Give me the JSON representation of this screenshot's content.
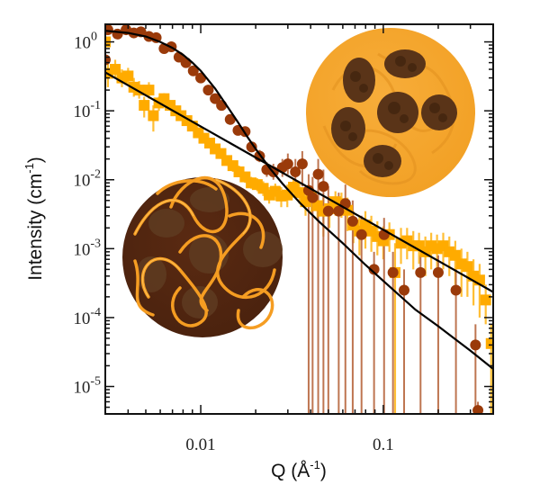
{
  "chart_data": {
    "type": "scatter",
    "title": "",
    "xlabel": "Q (Å^-1)",
    "xlabel_main": "Q (Å",
    "xlabel_sup": "-1",
    "xlabel_close": ")",
    "ylabel": "Intensity (cm^-1)",
    "ylabel_main": "Intensity (cm",
    "ylabel_sup": "-1",
    "ylabel_close": ")",
    "xscale": "log",
    "yscale": "log",
    "xlim": [
      0.003,
      0.4
    ],
    "ylim": [
      4e-06,
      1.8
    ],
    "grid": false,
    "legend": "none",
    "x_ticks": [
      {
        "value": 0.01,
        "label": "0.01"
      },
      {
        "value": 0.1,
        "label": "0.1"
      }
    ],
    "y_ticks": [
      {
        "value": 1,
        "base": "10",
        "exp": "0"
      },
      {
        "value": 0.1,
        "base": "10",
        "exp": "-1"
      },
      {
        "value": 0.01,
        "base": "10",
        "exp": "-2"
      },
      {
        "value": 0.001,
        "base": "10",
        "exp": "-3"
      },
      {
        "value": 0.0001,
        "base": "10",
        "exp": "-4"
      },
      {
        "value": 1e-05,
        "base": "10",
        "exp": "-5"
      }
    ],
    "series": [
      {
        "name": "dark-brown-circles",
        "marker": "circle",
        "color": "#9a3a0a",
        "errorbar_color": "#b8673f",
        "points": [
          {
            "x": 0.003,
            "y": 0.55,
            "lo": 0.35,
            "hi": 0.8
          },
          {
            "x": 0.0031,
            "y": 1.5,
            "lo": 1.35,
            "hi": 1.65
          },
          {
            "x": 0.0035,
            "y": 1.3,
            "lo": 1.2,
            "hi": 1.4
          },
          {
            "x": 0.0039,
            "y": 1.5,
            "lo": 1.4,
            "hi": 1.6
          },
          {
            "x": 0.0043,
            "y": 1.35,
            "lo": 1.25,
            "hi": 1.45
          },
          {
            "x": 0.0047,
            "y": 1.4,
            "lo": 1.3,
            "hi": 1.5
          },
          {
            "x": 0.0052,
            "y": 1.2,
            "lo": 1.1,
            "hi": 1.3
          },
          {
            "x": 0.0057,
            "y": 1.15,
            "lo": 1.05,
            "hi": 1.25
          },
          {
            "x": 0.0063,
            "y": 0.8,
            "lo": 0.72,
            "hi": 0.88
          },
          {
            "x": 0.0069,
            "y": 0.85,
            "lo": 0.77,
            "hi": 0.93
          },
          {
            "x": 0.0076,
            "y": 0.6,
            "lo": 0.54,
            "hi": 0.66
          },
          {
            "x": 0.0083,
            "y": 0.5,
            "lo": 0.45,
            "hi": 0.55
          },
          {
            "x": 0.0091,
            "y": 0.38,
            "lo": 0.34,
            "hi": 0.42
          },
          {
            "x": 0.01,
            "y": 0.3,
            "lo": 0.27,
            "hi": 0.33
          },
          {
            "x": 0.011,
            "y": 0.2,
            "lo": 0.18,
            "hi": 0.22
          },
          {
            "x": 0.012,
            "y": 0.15,
            "lo": 0.13,
            "hi": 0.17
          },
          {
            "x": 0.013,
            "y": 0.12,
            "lo": 0.105,
            "hi": 0.135
          },
          {
            "x": 0.0145,
            "y": 0.075,
            "lo": 0.065,
            "hi": 0.085
          },
          {
            "x": 0.016,
            "y": 0.052,
            "lo": 0.045,
            "hi": 0.06
          },
          {
            "x": 0.0175,
            "y": 0.05,
            "lo": 0.043,
            "hi": 0.058
          },
          {
            "x": 0.019,
            "y": 0.03,
            "lo": 0.025,
            "hi": 0.035
          },
          {
            "x": 0.021,
            "y": 0.022,
            "lo": 0.018,
            "hi": 0.027
          },
          {
            "x": 0.023,
            "y": 0.014,
            "lo": 0.011,
            "hi": 0.018
          },
          {
            "x": 0.025,
            "y": 0.013,
            "lo": 0.01,
            "hi": 0.017
          },
          {
            "x": 0.028,
            "y": 0.015,
            "lo": 0.011,
            "hi": 0.02
          },
          {
            "x": 0.03,
            "y": 0.017,
            "lo": 0.012,
            "hi": 0.024
          },
          {
            "x": 0.033,
            "y": 0.013,
            "lo": 0.007,
            "hi": 0.02
          },
          {
            "x": 0.036,
            "y": 0.017,
            "lo": 0.008,
            "hi": 0.026
          },
          {
            "x": 0.039,
            "y": 0.007,
            "lo": 4e-06,
            "hi": 0.012
          },
          {
            "x": 0.041,
            "y": 0.0055,
            "lo": 4e-06,
            "hi": 0.011
          },
          {
            "x": 0.044,
            "y": 0.012,
            "lo": 4e-06,
            "hi": 0.02
          },
          {
            "x": 0.047,
            "y": 0.008,
            "lo": 4e-06,
            "hi": 0.014
          },
          {
            "x": 0.05,
            "y": 0.0035,
            "lo": 4e-06,
            "hi": 0.008
          },
          {
            "x": 0.057,
            "y": 0.0035,
            "lo": 4e-06,
            "hi": 0.0065
          },
          {
            "x": 0.062,
            "y": 0.0045,
            "lo": 4e-06,
            "hi": 0.0085
          },
          {
            "x": 0.068,
            "y": 0.0025,
            "lo": 4e-06,
            "hi": 0.005
          },
          {
            "x": 0.076,
            "y": 0.0016,
            "lo": 4e-06,
            "hi": 0.003
          },
          {
            "x": 0.089,
            "y": 0.0005,
            "lo": 4e-06,
            "hi": 0.0009
          },
          {
            "x": 0.101,
            "y": 0.0016,
            "lo": 4e-06,
            "hi": 0.0028
          },
          {
            "x": 0.113,
            "y": 0.00045,
            "lo": 4e-06,
            "hi": 0.0009
          },
          {
            "x": 0.13,
            "y": 0.00025,
            "lo": 4e-06,
            "hi": 0.0005
          },
          {
            "x": 0.16,
            "y": 0.00045,
            "lo": 4e-06,
            "hi": 0.0008
          },
          {
            "x": 0.2,
            "y": 0.00045,
            "lo": 4e-06,
            "hi": 0.0008
          },
          {
            "x": 0.25,
            "y": 0.00025,
            "lo": 4e-06,
            "hi": 0.0005
          },
          {
            "x": 0.32,
            "y": 4e-05,
            "lo": 4e-06,
            "hi": 8e-05
          },
          {
            "x": 0.33,
            "y": 4.5e-06,
            "lo": 4e-06,
            "hi": 6e-06
          }
        ]
      },
      {
        "name": "orange-squares",
        "marker": "square",
        "color": "#ffab00",
        "errorbar_color": "#ffb820",
        "points": [
          {
            "x": 0.003,
            "y": 1.0,
            "lo": 0.85,
            "hi": 1.15
          },
          {
            "x": 0.0031,
            "y": 0.35,
            "lo": 0.22,
            "hi": 0.5
          },
          {
            "x": 0.0034,
            "y": 0.4,
            "lo": 0.3,
            "hi": 0.55
          },
          {
            "x": 0.0037,
            "y": 0.3,
            "lo": 0.22,
            "hi": 0.4
          },
          {
            "x": 0.004,
            "y": 0.32,
            "lo": 0.24,
            "hi": 0.42
          },
          {
            "x": 0.0043,
            "y": 0.22,
            "lo": 0.16,
            "hi": 0.3
          },
          {
            "x": 0.0046,
            "y": 0.2,
            "lo": 0.15,
            "hi": 0.27
          },
          {
            "x": 0.0049,
            "y": 0.12,
            "lo": 0.08,
            "hi": 0.16
          },
          {
            "x": 0.0052,
            "y": 0.2,
            "lo": 0.15,
            "hi": 0.26
          },
          {
            "x": 0.0055,
            "y": 0.085,
            "lo": 0.05,
            "hi": 0.12
          },
          {
            "x": 0.0059,
            "y": 0.13,
            "lo": 0.1,
            "hi": 0.16
          },
          {
            "x": 0.0063,
            "y": 0.15,
            "lo": 0.12,
            "hi": 0.18
          },
          {
            "x": 0.0068,
            "y": 0.12,
            "lo": 0.1,
            "hi": 0.14
          },
          {
            "x": 0.0073,
            "y": 0.1,
            "lo": 0.085,
            "hi": 0.115
          },
          {
            "x": 0.0078,
            "y": 0.085,
            "lo": 0.073,
            "hi": 0.097
          },
          {
            "x": 0.0084,
            "y": 0.072,
            "lo": 0.062,
            "hi": 0.082
          },
          {
            "x": 0.009,
            "y": 0.06,
            "lo": 0.052,
            "hi": 0.068
          },
          {
            "x": 0.0097,
            "y": 0.048,
            "lo": 0.041,
            "hi": 0.055
          },
          {
            "x": 0.0104,
            "y": 0.04,
            "lo": 0.034,
            "hi": 0.046
          },
          {
            "x": 0.0112,
            "y": 0.034,
            "lo": 0.029,
            "hi": 0.039
          },
          {
            "x": 0.012,
            "y": 0.028,
            "lo": 0.024,
            "hi": 0.032
          },
          {
            "x": 0.0129,
            "y": 0.024,
            "lo": 0.02,
            "hi": 0.028
          },
          {
            "x": 0.0139,
            "y": 0.019,
            "lo": 0.016,
            "hi": 0.022
          },
          {
            "x": 0.015,
            "y": 0.016,
            "lo": 0.013,
            "hi": 0.019
          },
          {
            "x": 0.0162,
            "y": 0.013,
            "lo": 0.011,
            "hi": 0.016
          },
          {
            "x": 0.0175,
            "y": 0.011,
            "lo": 0.009,
            "hi": 0.013
          },
          {
            "x": 0.0189,
            "y": 0.009,
            "lo": 0.0074,
            "hi": 0.011
          },
          {
            "x": 0.0204,
            "y": 0.0085,
            "lo": 0.0068,
            "hi": 0.0105
          },
          {
            "x": 0.022,
            "y": 0.0075,
            "lo": 0.0058,
            "hi": 0.0095
          },
          {
            "x": 0.0237,
            "y": 0.006,
            "lo": 0.0045,
            "hi": 0.0078
          },
          {
            "x": 0.0256,
            "y": 0.0068,
            "lo": 0.005,
            "hi": 0.0088
          },
          {
            "x": 0.0276,
            "y": 0.0058,
            "lo": 0.004,
            "hi": 0.0078
          },
          {
            "x": 0.0298,
            "y": 0.006,
            "lo": 0.004,
            "hi": 0.0085
          },
          {
            "x": 0.0322,
            "y": 0.0078,
            "lo": 0.0055,
            "hi": 0.01
          },
          {
            "x": 0.0347,
            "y": 0.0065,
            "lo": 0.0045,
            "hi": 0.009
          },
          {
            "x": 0.0375,
            "y": 0.0048,
            "lo": 0.003,
            "hi": 0.007
          },
          {
            "x": 0.0404,
            "y": 0.0056,
            "lo": 0.0033,
            "hi": 0.008
          },
          {
            "x": 0.0436,
            "y": 0.0042,
            "lo": 0.0025,
            "hi": 0.006
          },
          {
            "x": 0.047,
            "y": 0.0035,
            "lo": 0.0015,
            "hi": 0.0055
          },
          {
            "x": 0.0507,
            "y": 0.0038,
            "lo": 0.002,
            "hi": 0.0058
          },
          {
            "x": 0.0547,
            "y": 0.0048,
            "lo": 0.003,
            "hi": 0.0068
          },
          {
            "x": 0.059,
            "y": 0.0045,
            "lo": 0.0028,
            "hi": 0.0065
          },
          {
            "x": 0.0636,
            "y": 0.0036,
            "lo": 0.0018,
            "hi": 0.0055
          },
          {
            "x": 0.0686,
            "y": 0.0022,
            "lo": 0.0012,
            "hi": 0.0035
          },
          {
            "x": 0.074,
            "y": 0.0018,
            "lo": 0.0008,
            "hi": 0.003
          },
          {
            "x": 0.0798,
            "y": 0.0022,
            "lo": 0.001,
            "hi": 0.0035
          },
          {
            "x": 0.086,
            "y": 0.0018,
            "lo": 0.0009,
            "hi": 0.003
          },
          {
            "x": 0.0928,
            "y": 0.0015,
            "lo": 0.0008,
            "hi": 0.0025
          },
          {
            "x": 0.1,
            "y": 0.0013,
            "lo": 0.0007,
            "hi": 0.0021
          },
          {
            "x": 0.108,
            "y": 0.0016,
            "lo": 0.0009,
            "hi": 0.0024
          },
          {
            "x": 0.116,
            "y": 0.00045,
            "lo": 4e-06,
            "hi": 0.0012
          },
          {
            "x": 0.125,
            "y": 0.0012,
            "lo": 0.0006,
            "hi": 0.002
          },
          {
            "x": 0.135,
            "y": 0.0013,
            "lo": 0.0007,
            "hi": 0.002
          },
          {
            "x": 0.146,
            "y": 0.0011,
            "lo": 0.0005,
            "hi": 0.0018
          },
          {
            "x": 0.157,
            "y": 0.0011,
            "lo": 0.0006,
            "hi": 0.0017
          },
          {
            "x": 0.17,
            "y": 0.0009,
            "lo": 0.0004,
            "hi": 0.0015
          },
          {
            "x": 0.183,
            "y": 0.0011,
            "lo": 0.0005,
            "hi": 0.0017
          },
          {
            "x": 0.197,
            "y": 0.001,
            "lo": 0.0005,
            "hi": 0.0016
          },
          {
            "x": 0.213,
            "y": 0.0011,
            "lo": 0.0005,
            "hi": 0.0017
          },
          {
            "x": 0.23,
            "y": 0.0009,
            "lo": 0.0004,
            "hi": 0.0015
          },
          {
            "x": 0.248,
            "y": 0.0008,
            "lo": 0.0003,
            "hi": 0.0013
          },
          {
            "x": 0.268,
            "y": 0.0006,
            "lo": 0.0002,
            "hi": 0.001
          },
          {
            "x": 0.289,
            "y": 0.00055,
            "lo": 0.0002,
            "hi": 0.0009
          },
          {
            "x": 0.312,
            "y": 0.0004,
            "lo": 0.00015,
            "hi": 0.0007
          },
          {
            "x": 0.337,
            "y": 0.00035,
            "lo": 0.0001,
            "hi": 0.0006
          },
          {
            "x": 0.364,
            "y": 0.00018,
            "lo": 8e-05,
            "hi": 0.0003
          },
          {
            "x": 0.39,
            "y": 4.2e-05,
            "lo": 4e-06,
            "hi": 8e-05
          }
        ]
      }
    ],
    "fits": [
      {
        "name": "fit-curve-circles",
        "color": "#000000",
        "description": "Guinier-type decay fit through dark brown circles",
        "points": [
          [
            0.003,
            1.45
          ],
          [
            0.004,
            1.35
          ],
          [
            0.005,
            1.2
          ],
          [
            0.006,
            1.0
          ],
          [
            0.007,
            0.82
          ],
          [
            0.008,
            0.65
          ],
          [
            0.009,
            0.5
          ],
          [
            0.01,
            0.38
          ],
          [
            0.012,
            0.21
          ],
          [
            0.014,
            0.115
          ],
          [
            0.016,
            0.068
          ],
          [
            0.018,
            0.042
          ],
          [
            0.02,
            0.028
          ],
          [
            0.024,
            0.0145
          ],
          [
            0.028,
            0.0088
          ],
          [
            0.035,
            0.0046
          ],
          [
            0.045,
            0.0024
          ],
          [
            0.06,
            0.0012
          ],
          [
            0.08,
            0.00058
          ],
          [
            0.1,
            0.00034
          ],
          [
            0.15,
            0.00013
          ],
          [
            0.2,
            7.5e-05
          ],
          [
            0.3,
            3.3e-05
          ],
          [
            0.4,
            1.8e-05
          ]
        ]
      },
      {
        "name": "fit-line-squares",
        "color": "#000000",
        "description": "Power-law fit through orange squares",
        "points": [
          [
            0.003,
            0.36
          ],
          [
            0.4,
            0.000235
          ]
        ]
      }
    ],
    "annotations": [
      {
        "name": "inset-image-aggregated",
        "description": "orange disk with dark particle clusters",
        "position": "top-right"
      },
      {
        "name": "inset-image-dispersed",
        "description": "dark brown disk with orange polymer chains",
        "position": "middle-left"
      }
    ]
  }
}
